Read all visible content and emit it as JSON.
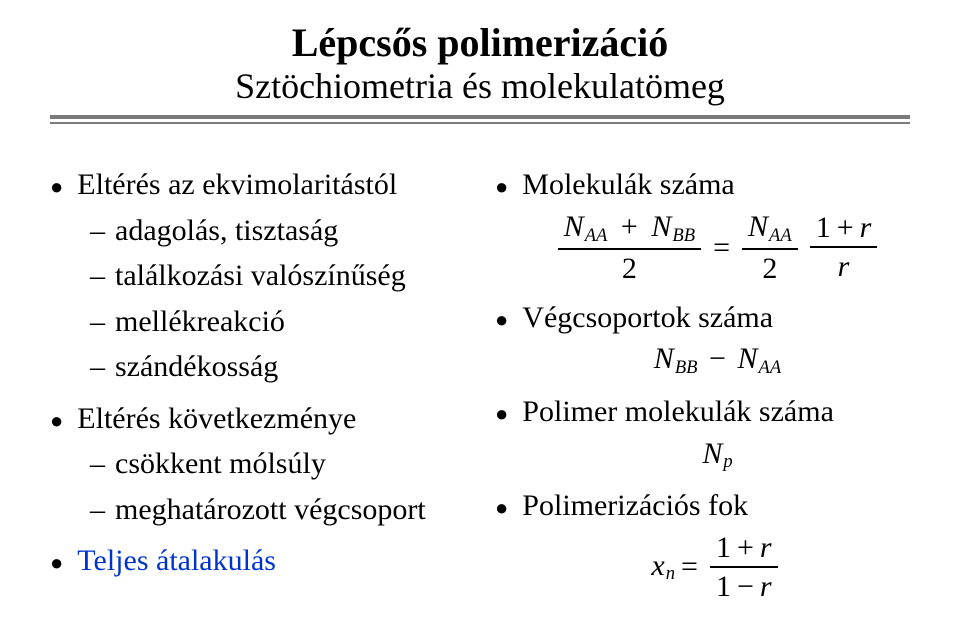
{
  "title": {
    "main": "Lépcsős polimerizáció",
    "sub": "Sztöchiometria és molekulatömeg"
  },
  "left": {
    "b1_1": "Eltérés az ekvimolaritástól",
    "b2_1": "adagolás, tisztaság",
    "b2_2": "találkozási valószínűség",
    "b2_3": "mellékreakció",
    "b2_4": "szándékosság",
    "b1_2": "Eltérés következménye",
    "b2_5": "csökkent mólsúly",
    "b2_6": "meghatározott végcsoport",
    "b1_3": "Teljes átalakulás"
  },
  "right": {
    "b1_1": "Molekulák száma",
    "b1_2": "Végcsoportok száma",
    "b1_3": "Polimer molekulák száma",
    "b1_4": "Polimerizációs fok"
  },
  "math": {
    "N": "N",
    "AA": "AA",
    "BB": "BB",
    "plus": "+",
    "eq": "=",
    "minus": "−",
    "two": "2",
    "one_plus_r": "1 + r",
    "one_minus_r": "1 − r",
    "r": "r",
    "x": "x",
    "n": "n",
    "p": "p",
    "Np": "N"
  },
  "colors": {
    "bullet": "#000000",
    "rule": "#7a7a7a",
    "blue": "#0033cc",
    "text": "#000000",
    "bg": "#ffffff"
  }
}
